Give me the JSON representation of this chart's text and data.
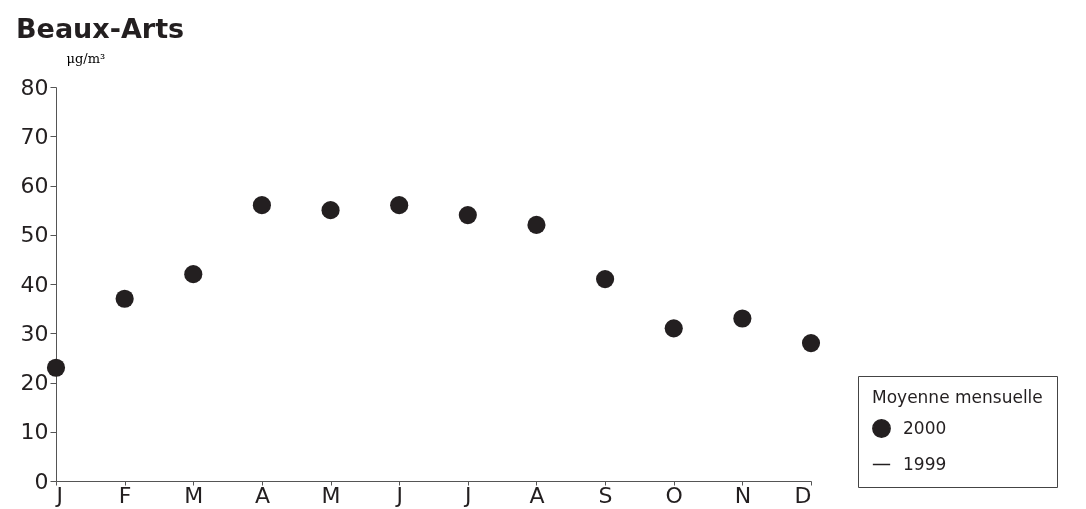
{
  "chart_data": {
    "type": "scatter",
    "title": "Beaux-Arts",
    "ylabel": "μg/m³",
    "legend_title": "Moyenne mensuelle",
    "categories": [
      "J",
      "F",
      "M",
      "A",
      "M",
      "J",
      "J",
      "A",
      "S",
      "O",
      "N",
      "D"
    ],
    "series": [
      {
        "name": "2000",
        "color": "#231f20",
        "values": [
          23,
          37,
          42,
          56,
          55,
          56,
          54,
          52,
          41,
          31,
          33,
          28
        ]
      },
      {
        "name": "1999",
        "type": "line",
        "color": "#231f20",
        "values": [
          null,
          null,
          null,
          null,
          null,
          null,
          null,
          null,
          null,
          null,
          null,
          null
        ]
      }
    ],
    "ylim": [
      0,
      80
    ],
    "yticks": [
      0,
      10,
      20,
      30,
      40,
      50,
      60,
      70,
      80
    ],
    "grid": false,
    "legend": "bottom right",
    "marker": "circle"
  }
}
